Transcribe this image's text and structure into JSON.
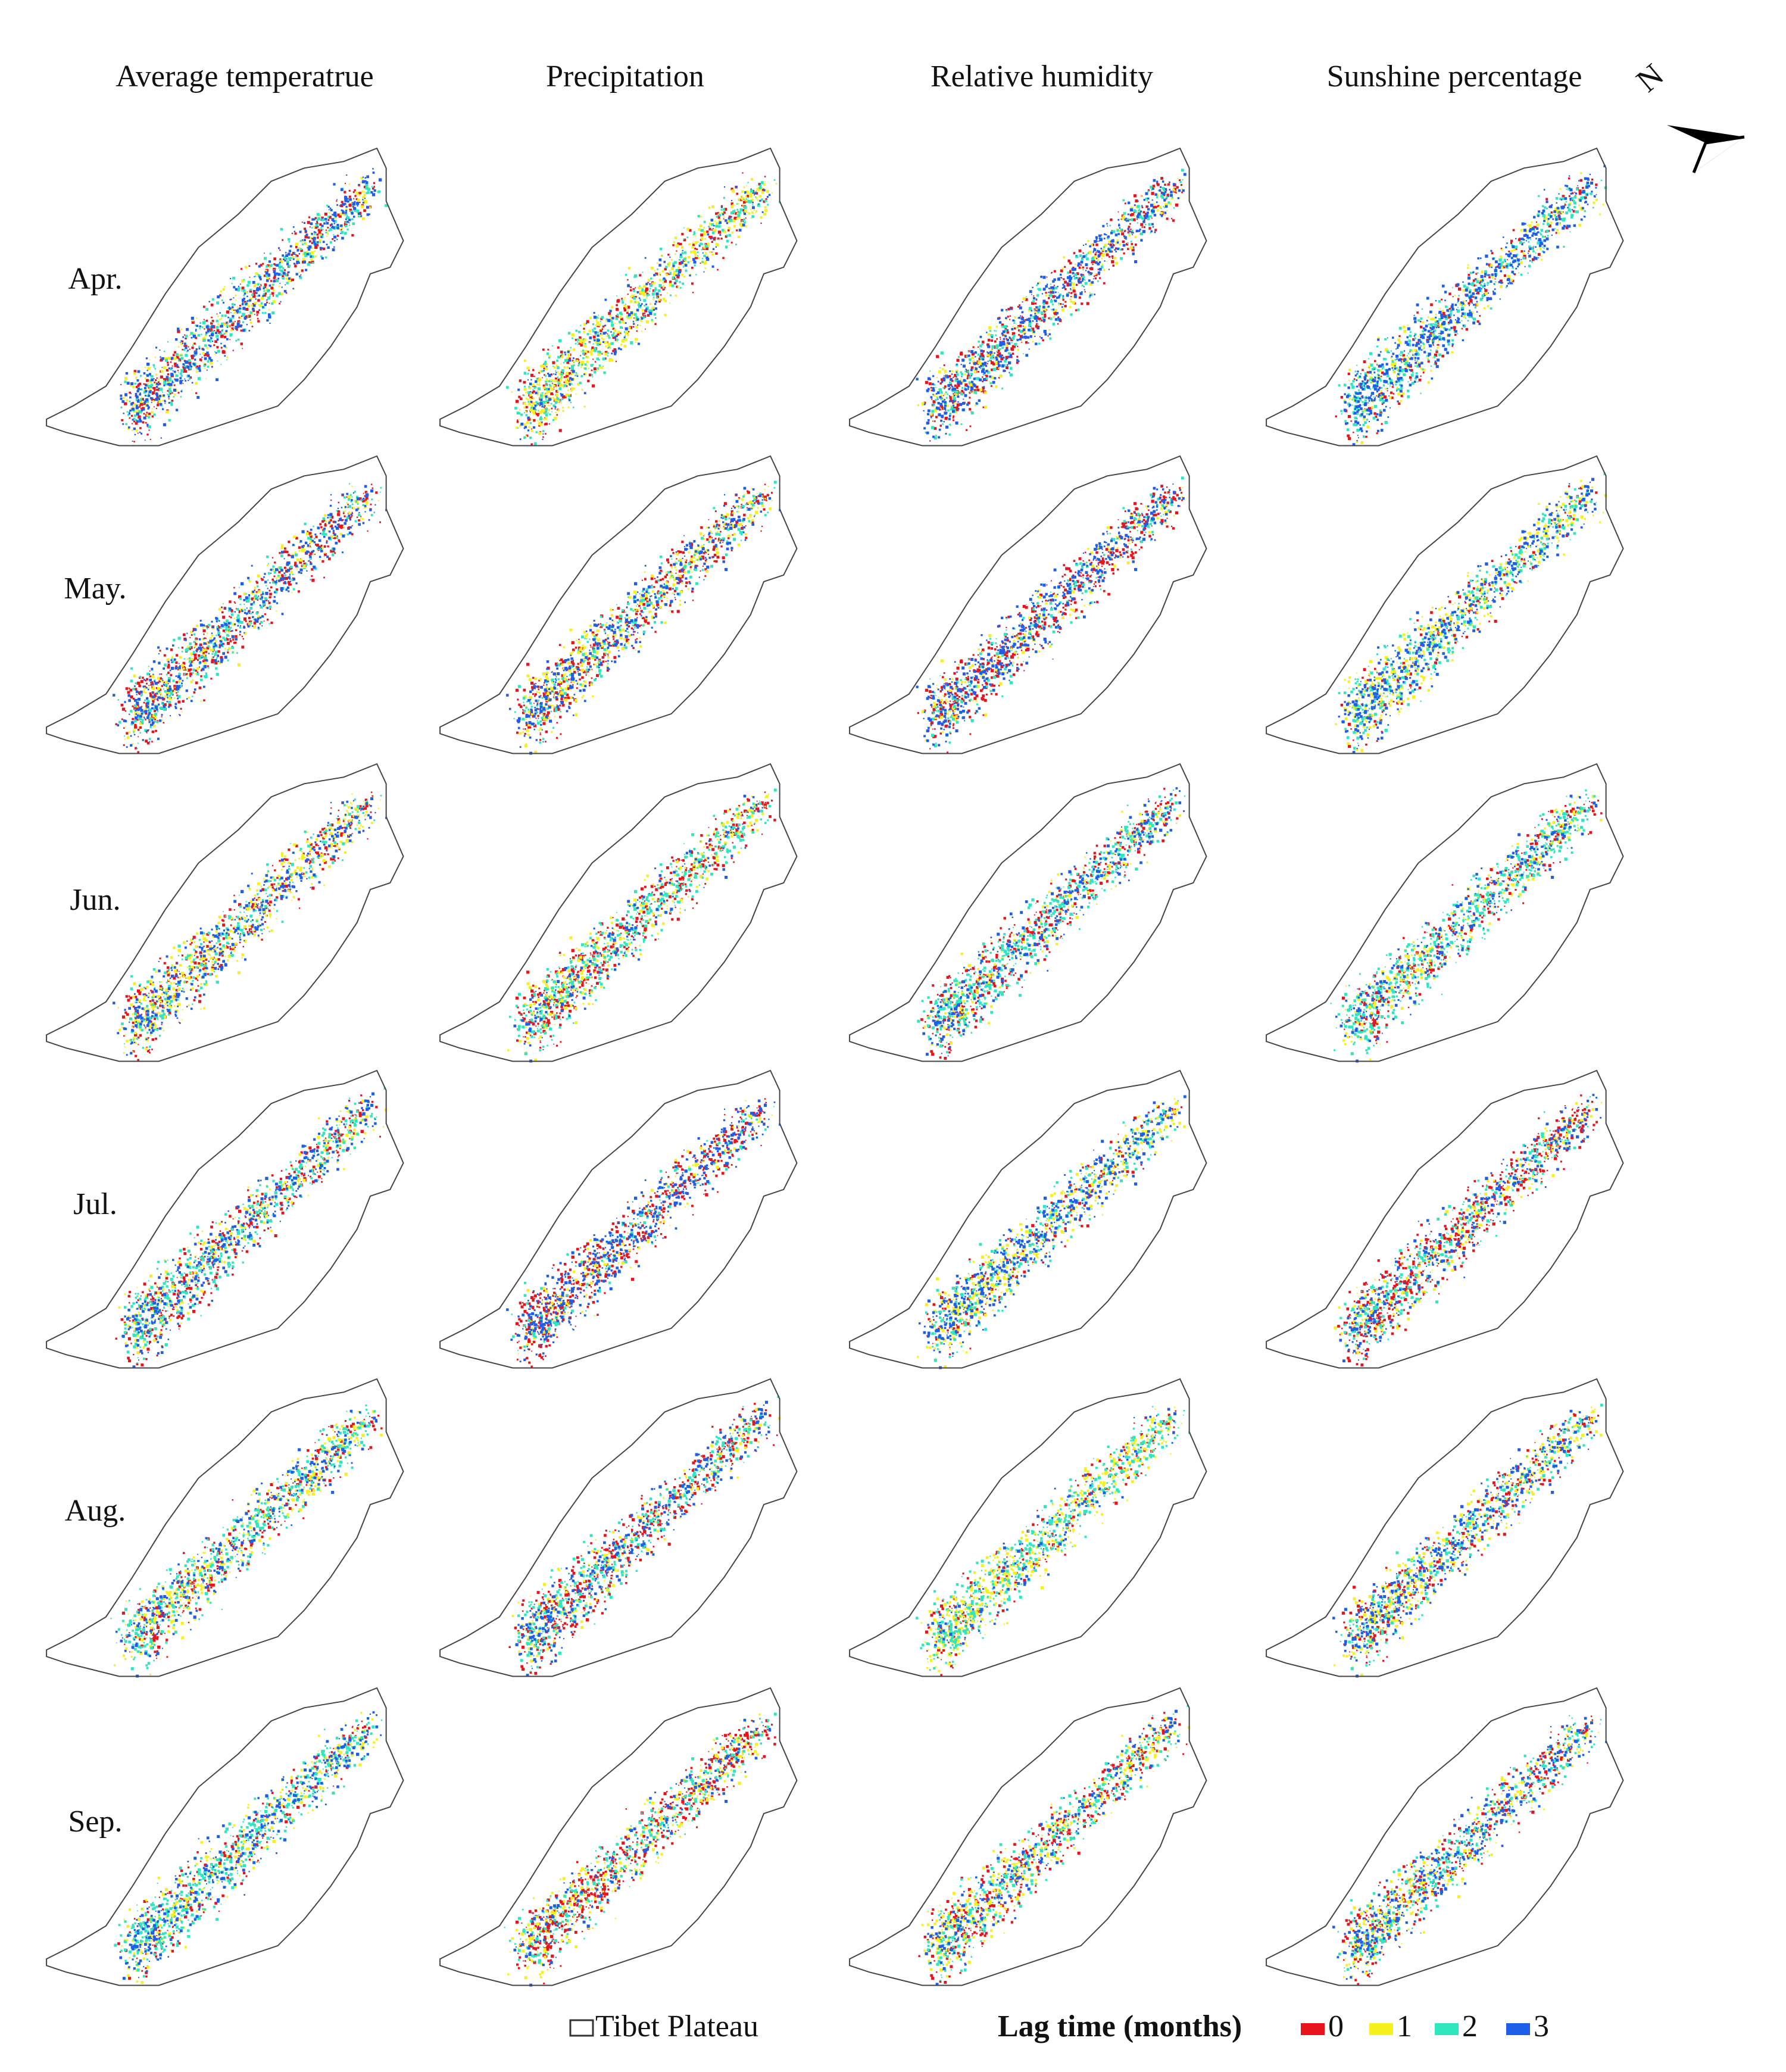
{
  "columns": [
    "Average temperatrue",
    "Precipitation",
    "Relative humidity",
    "Sunshine percentage"
  ],
  "rows": [
    "Apr.",
    "May.",
    "Jun.",
    "Jul.",
    "Aug.",
    "Sep."
  ],
  "north": "N",
  "boundary_legend": "Tibet Plateau",
  "legend": {
    "title": "Lag time (months)",
    "items": [
      {
        "label": "0",
        "color": "#e8141b"
      },
      {
        "label": "1",
        "color": "#f5f01e"
      },
      {
        "label": "2",
        "color": "#2ee6c0"
      },
      {
        "label": "3",
        "color": "#1f5ee8"
      }
    ]
  }
}
